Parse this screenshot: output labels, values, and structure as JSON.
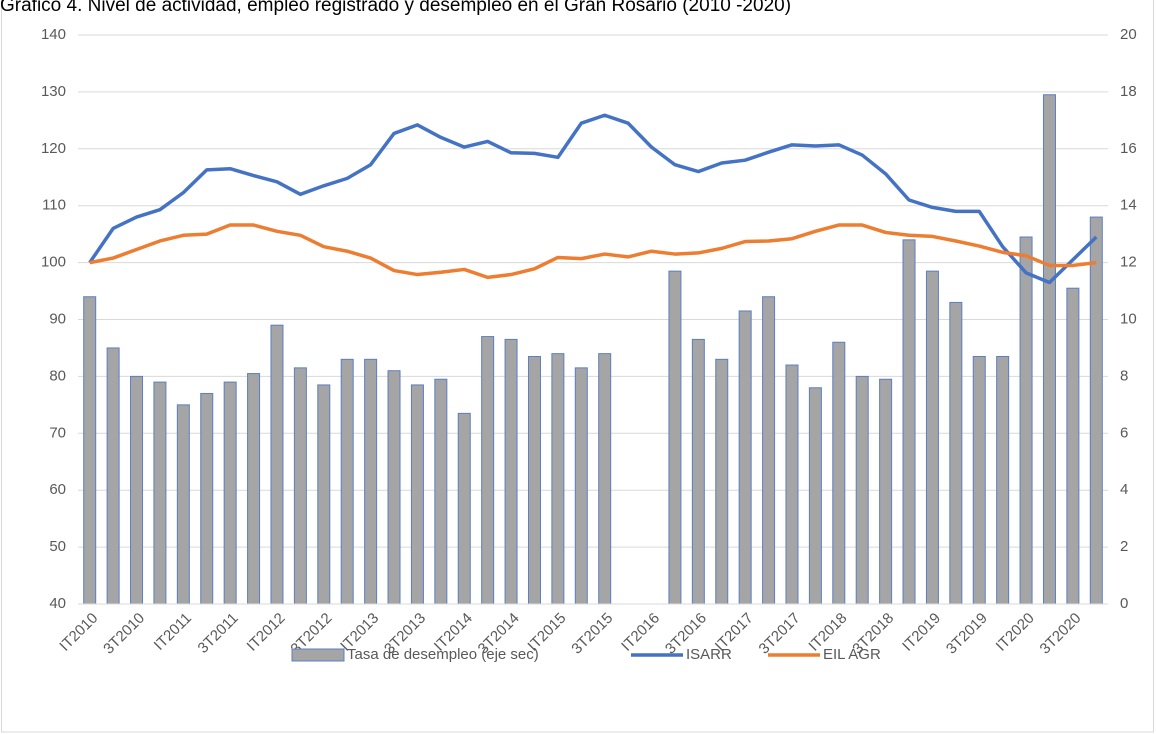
{
  "chart_data": {
    "type": "bar-line",
    "title": "Gráfico 4. Nivel de actividad, empleo registrado y desempleo en el Gran Rosario (2010 -2020)",
    "categories": [
      "IT2010",
      null,
      "3T2010",
      null,
      "IT2011",
      null,
      "3T2011",
      null,
      "IT2012",
      null,
      "3T2012",
      null,
      "IT2013",
      null,
      "3T2013",
      null,
      "IT2014",
      null,
      "3T2014",
      null,
      "IT2015",
      null,
      "3T2015",
      null,
      "IT2016",
      null,
      "3T2016",
      null,
      "IT2017",
      null,
      "3T2017",
      null,
      "IT2018",
      null,
      "3T2018",
      null,
      "IT2019",
      null,
      "3T2019",
      null,
      "IT2020",
      null,
      "3T2020",
      null
    ],
    "series": [
      {
        "name": "Tasa de desempleo (eje sec)",
        "type": "bar",
        "axis": "y2",
        "color": "#a5a5a5",
        "edge": "#5b7fc4",
        "values": [
          10.8,
          9.0,
          8.0,
          7.8,
          7.0,
          7.4,
          7.8,
          8.1,
          9.8,
          8.3,
          7.7,
          8.6,
          8.6,
          8.2,
          7.7,
          7.9,
          6.7,
          9.4,
          9.3,
          8.7,
          8.8,
          8.3,
          8.8,
          null,
          null,
          11.7,
          9.3,
          8.6,
          10.3,
          10.8,
          8.4,
          7.6,
          9.2,
          8.0,
          7.9,
          12.8,
          11.7,
          10.6,
          8.7,
          8.7,
          12.9,
          17.9,
          11.1,
          13.6
        ]
      },
      {
        "name": "ISARR",
        "type": "line",
        "color": "#4472c4",
        "values": [
          100,
          106,
          108,
          109.3,
          112.3,
          116.3,
          116.5,
          115.3,
          114.2,
          112,
          113.5,
          114.8,
          117.2,
          122.7,
          124.2,
          122,
          120.3,
          121.3,
          119.3,
          119.2,
          118.5,
          124.5,
          125.9,
          124.5,
          120.3,
          117.2,
          116,
          117.5,
          118,
          119.4,
          120.7,
          120.5,
          120.7,
          118.9,
          115.6,
          111,
          109.7,
          109,
          109,
          102.8,
          98.2,
          96.5,
          100.5,
          104.5
        ]
      },
      {
        "name": "EIL AGR",
        "type": "line",
        "color": "#ed7d31",
        "values": [
          100,
          100.8,
          102.3,
          103.8,
          104.8,
          105,
          106.6,
          106.6,
          105.5,
          104.8,
          102.8,
          102,
          100.8,
          98.6,
          97.9,
          98.3,
          98.8,
          97.4,
          97.9,
          98.9,
          100.9,
          100.7,
          101.5,
          101,
          102,
          101.5,
          101.7,
          102.5,
          103.7,
          103.8,
          104.2,
          105.5,
          106.6,
          106.6,
          105.3,
          104.8,
          104.6,
          103.8,
          102.9,
          101.8,
          101.2,
          99.5,
          99.5,
          100
        ]
      }
    ],
    "ylim": [
      40,
      140
    ],
    "yticks": [
      40,
      50,
      60,
      70,
      80,
      90,
      100,
      110,
      120,
      130,
      140
    ],
    "y2lim": [
      0,
      20
    ],
    "y2ticks": [
      0,
      2,
      4,
      6,
      8,
      10,
      12,
      14,
      16,
      18,
      20
    ],
    "grid": true,
    "legend": "bottom"
  }
}
